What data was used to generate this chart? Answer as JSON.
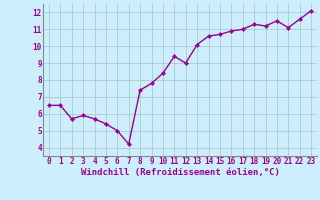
{
  "x": [
    0,
    1,
    2,
    3,
    4,
    5,
    6,
    7,
    8,
    9,
    10,
    11,
    12,
    13,
    14,
    15,
    16,
    17,
    18,
    19,
    20,
    21,
    22,
    23
  ],
  "y": [
    6.5,
    6.5,
    5.7,
    5.9,
    5.7,
    5.4,
    5.0,
    4.2,
    7.4,
    7.8,
    8.4,
    9.4,
    9.0,
    10.1,
    10.6,
    10.7,
    10.9,
    11.0,
    11.3,
    11.2,
    11.5,
    11.1,
    11.6,
    12.1
  ],
  "line_color": "#990099",
  "marker": "D",
  "marker_size": 2.0,
  "background_color": "#cceeff",
  "grid_color": "#aacccc",
  "xlabel": "Windchill (Refroidissement éolien,°C)",
  "xlabel_fontsize": 6.5,
  "xlim": [
    -0.5,
    23.5
  ],
  "ylim": [
    3.5,
    12.5
  ],
  "yticks": [
    4,
    5,
    6,
    7,
    8,
    9,
    10,
    11,
    12
  ],
  "xticks": [
    0,
    1,
    2,
    3,
    4,
    5,
    6,
    7,
    8,
    9,
    10,
    11,
    12,
    13,
    14,
    15,
    16,
    17,
    18,
    19,
    20,
    21,
    22,
    23
  ],
  "tick_fontsize": 5.5,
  "line_width": 1.0
}
